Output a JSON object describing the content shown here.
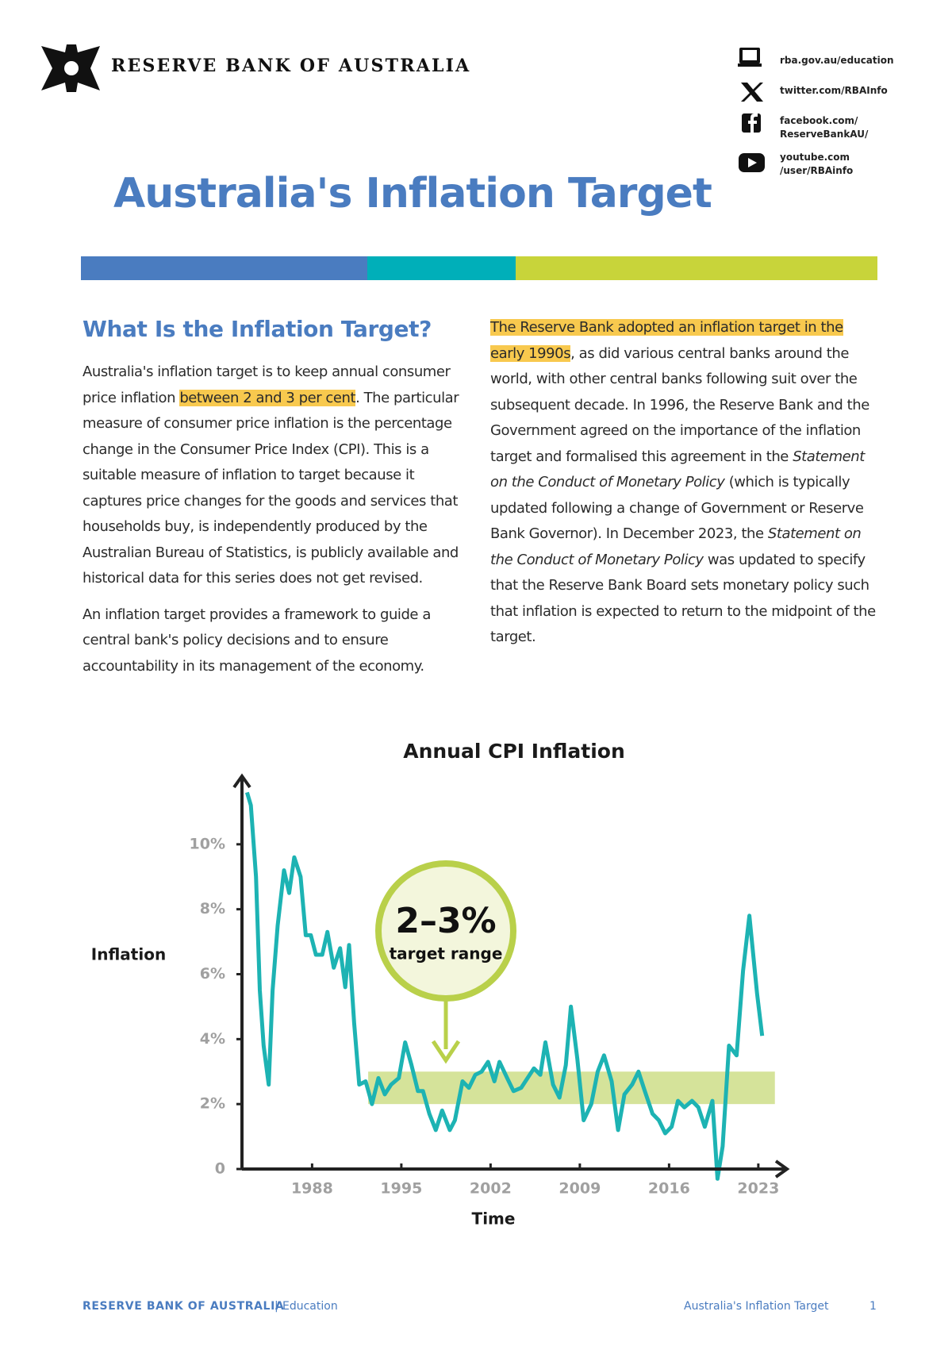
{
  "header": {
    "org": "RESERVE BANK OF AUSTRALIA",
    "contacts": [
      [
        "rba.gov.au/education"
      ],
      [
        "twitter.com/RBAInfo"
      ],
      [
        "facebook.com/",
        "ReserveBankAU/"
      ],
      [
        "youtube.com",
        "/user/RBAinfo"
      ]
    ],
    "title": "Australia's Inflation Target"
  },
  "left_column": {
    "heading": "What Is the Inflation Target?",
    "paragraphs": [
      [
        {
          "text": "Australia's inflation target is to keep annual consumer price inflation ",
          "style": "plain"
        },
        {
          "text": "between 2 and 3 per cent",
          "style": "highlight"
        },
        {
          "text": ". The particular measure of consumer price inflation is the percentage change in the Consumer Price Index (CPI). This is a suitable measure of inflation to target because it captures price changes for the goods and services that households buy, is independently produced by the Australian Bureau of Statistics, is publicly available and historical data for this series does not get revised.",
          "style": "plain"
        }
      ],
      [
        {
          "text": "An inflation target provides a framework to guide a central bank's policy decisions and to ensure accountability in its management of the economy.",
          "style": "plain"
        }
      ]
    ]
  },
  "right_column": {
    "paragraphs": [
      [
        {
          "text": "The Reserve Bank adopted an inflation target in the early 1990s",
          "style": "highlight"
        },
        {
          "text": ", as did various central banks around the world, with other central banks following suit over the subsequent decade. In 1996, the Reserve Bank and the Government agreed on the importance of the inflation target and formalised this agreement in the ",
          "style": "plain"
        },
        {
          "text": "Statement on the Conduct of Monetary Policy",
          "style": "italic"
        },
        {
          "text": " (which is typically updated following a change of Government or Reserve Bank Governor). In December 2023, the ",
          "style": "plain"
        },
        {
          "text": "Statement on the Conduct of Monetary Policy",
          "style": "italic"
        },
        {
          "text": " was updated to specify that the Reserve Bank Board sets monetary policy such that inflation is expected to return to the midpoint of the target.",
          "style": "plain"
        }
      ]
    ]
  },
  "chart_data": {
    "type": "line",
    "title": "Annual CPI Inflation",
    "x_label": "Time",
    "y_label": "Inflation",
    "x": [
      1982.9,
      1983.2,
      1983.6,
      1983.9,
      1984.2,
      1984.6,
      1984.9,
      1985.3,
      1985.8,
      1986.2,
      1986.6,
      1987.1,
      1987.5,
      1987.9,
      1988.3,
      1988.8,
      1989.2,
      1989.7,
      1990.2,
      1990.6,
      1990.9,
      1991.3,
      1991.7,
      1992.2,
      1992.7,
      1993.2,
      1993.7,
      1994.2,
      1994.8,
      1995.3,
      1995.8,
      1996.3,
      1996.7,
      1997.2,
      1997.7,
      1998.2,
      1998.8,
      1999.2,
      1999.8,
      2000.3,
      2000.8,
      2001.3,
      2001.8,
      2002.3,
      2002.7,
      2003.3,
      2003.8,
      2004.4,
      2004.9,
      2005.4,
      2005.9,
      2006.3,
      2006.9,
      2007.4,
      2007.9,
      2008.3,
      2008.8,
      2009.3,
      2009.9,
      2010.4,
      2010.9,
      2011.5,
      2012.0,
      2012.5,
      2013.1,
      2013.6,
      2014.1,
      2014.7,
      2015.2,
      2015.7,
      2016.2,
      2016.7,
      2017.2,
      2017.8,
      2018.3,
      2018.8,
      2019.4,
      2019.8,
      2020.2,
      2020.7,
      2021.3,
      2021.8,
      2022.3,
      2022.9,
      2023.3
    ],
    "series": [
      {
        "name": "Annual CPI inflation",
        "color": "#1db3b3",
        "values": [
          11.6,
          11.2,
          9.0,
          5.5,
          3.8,
          2.6,
          5.5,
          7.5,
          9.2,
          8.5,
          9.6,
          9.0,
          7.2,
          7.2,
          6.6,
          6.6,
          7.3,
          6.2,
          6.8,
          5.6,
          6.9,
          4.5,
          2.6,
          2.7,
          2.0,
          2.8,
          2.3,
          2.6,
          2.8,
          3.9,
          3.2,
          2.4,
          2.4,
          1.7,
          1.2,
          1.8,
          1.2,
          1.5,
          2.7,
          2.5,
          2.9,
          3.0,
          3.3,
          2.7,
          3.3,
          2.8,
          2.4,
          2.5,
          2.8,
          3.1,
          2.9,
          3.9,
          2.6,
          2.2,
          3.2,
          5.0,
          3.4,
          1.5,
          2.0,
          3.0,
          3.5,
          2.7,
          1.2,
          2.3,
          2.6,
          3.0,
          2.4,
          1.7,
          1.5,
          1.1,
          1.3,
          2.1,
          1.9,
          2.1,
          1.9,
          1.3,
          2.1,
          -0.3,
          0.7,
          3.8,
          3.5,
          6.1,
          7.8,
          5.4,
          4.1
        ]
      }
    ],
    "target_band": {
      "x": [
        1992.4,
        2024.3
      ],
      "y": [
        2,
        3
      ],
      "color": "#d5e39a"
    },
    "annotation": {
      "value": "2–3%",
      "caption": "target range",
      "color": "#b9d04a"
    },
    "xlim": [
      1982.5,
      2025
    ],
    "ylim": [
      0,
      12
    ],
    "xticks": [
      1988,
      1995,
      2002,
      2009,
      2016,
      2023
    ],
    "yticks": [
      0,
      {
        "value": 2,
        "label": "2%"
      },
      {
        "value": 4,
        "label": "4%"
      },
      {
        "value": 6,
        "label": "6%"
      },
      {
        "value": 8,
        "label": "8%"
      },
      {
        "value": 10,
        "label": "10%"
      }
    ]
  },
  "footer": {
    "org": "RESERVE BANK OF AUSTRALIA",
    "section": "Education",
    "doc_title": "Australia's Inflation Target",
    "page": "1"
  }
}
